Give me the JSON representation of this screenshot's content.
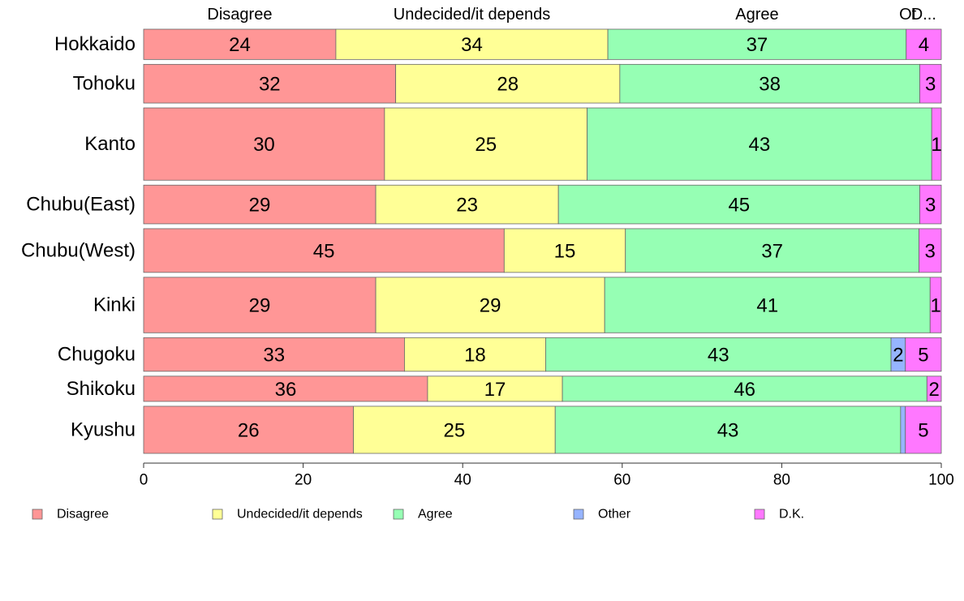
{
  "chart_data": {
    "type": "bar",
    "orientation": "horizontal",
    "stacked": true,
    "categories": [
      "Hokkaido",
      "Tohoku",
      "Kanto",
      "Chubu(East)",
      "Chubu(West)",
      "Kinki",
      "Chugoku",
      "Shikoku",
      "Kyushu"
    ],
    "series": [
      {
        "name": "Disagree",
        "color": "#ff9696",
        "values": [
          24.1,
          31.6,
          30.2,
          29.1,
          45.2,
          29.1,
          32.7,
          35.6,
          26.3
        ],
        "labels": [
          "24",
          "32",
          "30",
          "29",
          "45",
          "29",
          "33",
          "36",
          "26"
        ]
      },
      {
        "name": "Undecided/it depends",
        "color": "#ffff96",
        "values": [
          34.1,
          28.1,
          25.4,
          22.9,
          15.2,
          28.7,
          17.7,
          16.9,
          25.3
        ],
        "labels": [
          "34",
          "28",
          "25",
          "23",
          "15",
          "29",
          "18",
          "17",
          "25"
        ]
      },
      {
        "name": "Agree",
        "color": "#96ffb4",
        "values": [
          37.4,
          37.6,
          43.2,
          45.3,
          36.8,
          40.8,
          43.3,
          45.7,
          43.3
        ],
        "labels": [
          "37",
          "38",
          "43",
          "45",
          "37",
          "41",
          "43",
          "46",
          "43"
        ]
      },
      {
        "name": "Other",
        "color": "#96b4ff",
        "values": [
          0,
          0,
          0,
          0,
          0,
          0,
          1.8,
          0,
          0.6
        ],
        "labels": [
          "",
          "",
          "",
          "",
          "",
          "",
          "2",
          "",
          ""
        ]
      },
      {
        "name": "D.K.",
        "color": "#ff78ff",
        "values": [
          4.4,
          2.7,
          1.2,
          2.7,
          2.8,
          1.4,
          4.5,
          1.8,
          4.5
        ],
        "labels": [
          "4",
          "3",
          "1",
          "3",
          "3",
          "1",
          "5",
          "2",
          "5"
        ]
      }
    ],
    "relative_bar_heights": [
      36,
      46,
      86,
      46,
      52,
      66,
      40,
      30,
      56
    ],
    "top_labels": [
      "Disagree",
      "Undecided/it depends",
      "Agree",
      "Ot",
      "D..."
    ],
    "xlim": [
      0,
      100
    ],
    "x_ticks": [
      "0",
      "20",
      "40",
      "60",
      "80",
      "100"
    ],
    "legend_position": "bottom",
    "title": "",
    "xlabel": "",
    "ylabel": ""
  }
}
